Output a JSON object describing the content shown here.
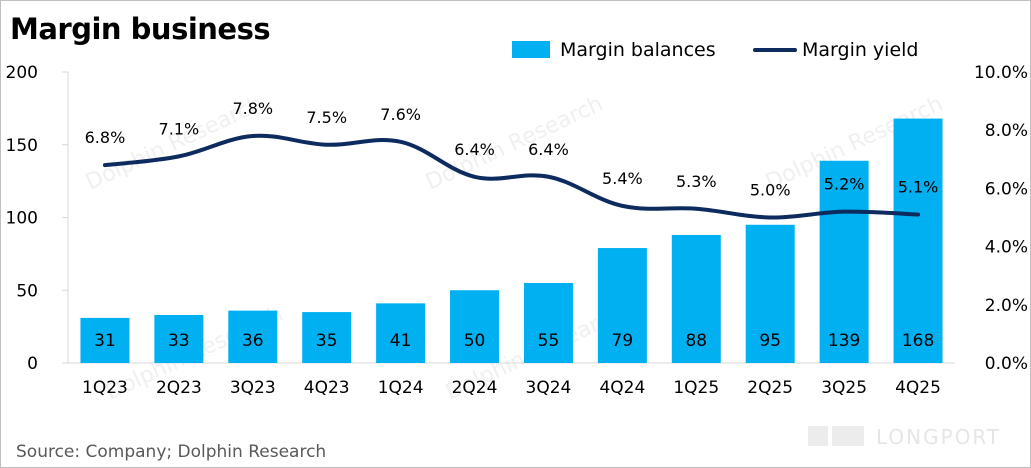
{
  "chart_data": {
    "type": "bar+line",
    "title": "Margin business",
    "source": "Source: Company; Dolphin Research",
    "categories": [
      "1Q23",
      "2Q23",
      "3Q23",
      "4Q23",
      "1Q24",
      "2Q24",
      "3Q24",
      "4Q24",
      "1Q25",
      "2Q25",
      "3Q25",
      "4Q25"
    ],
    "series": [
      {
        "name": "Margin balances",
        "type": "bar",
        "axis": "left",
        "color": "#00B0F0",
        "values": [
          31,
          33,
          36,
          35,
          41,
          50,
          55,
          79,
          88,
          95,
          139,
          168
        ],
        "labels": [
          "31",
          "33",
          "36",
          "35",
          "41",
          "50",
          "55",
          "79",
          "88",
          "95",
          "139",
          "168"
        ]
      },
      {
        "name": "Margin yield",
        "type": "line",
        "axis": "right",
        "color": "#0D2B5E",
        "values": [
          6.8,
          7.1,
          7.8,
          7.5,
          7.6,
          6.4,
          6.4,
          5.4,
          5.3,
          5.0,
          5.2,
          5.1
        ],
        "labels": [
          "6.8%",
          "7.1%",
          "7.8%",
          "7.5%",
          "7.6%",
          "6.4%",
          "6.4%",
          "5.4%",
          "5.3%",
          "5.0%",
          "5.2%",
          "5.1%"
        ]
      }
    ],
    "y_left": {
      "min": 0,
      "max": 200,
      "ticks": [
        "0",
        "50",
        "100",
        "150",
        "200"
      ]
    },
    "y_right": {
      "min": 0,
      "max": 10,
      "ticks": [
        "0.0%",
        "2.0%",
        "4.0%",
        "6.0%",
        "8.0%",
        "10.0%"
      ]
    },
    "legend_position": "top-right"
  },
  "watermark": "Dolphin Research",
  "brand": "LONGPORT"
}
